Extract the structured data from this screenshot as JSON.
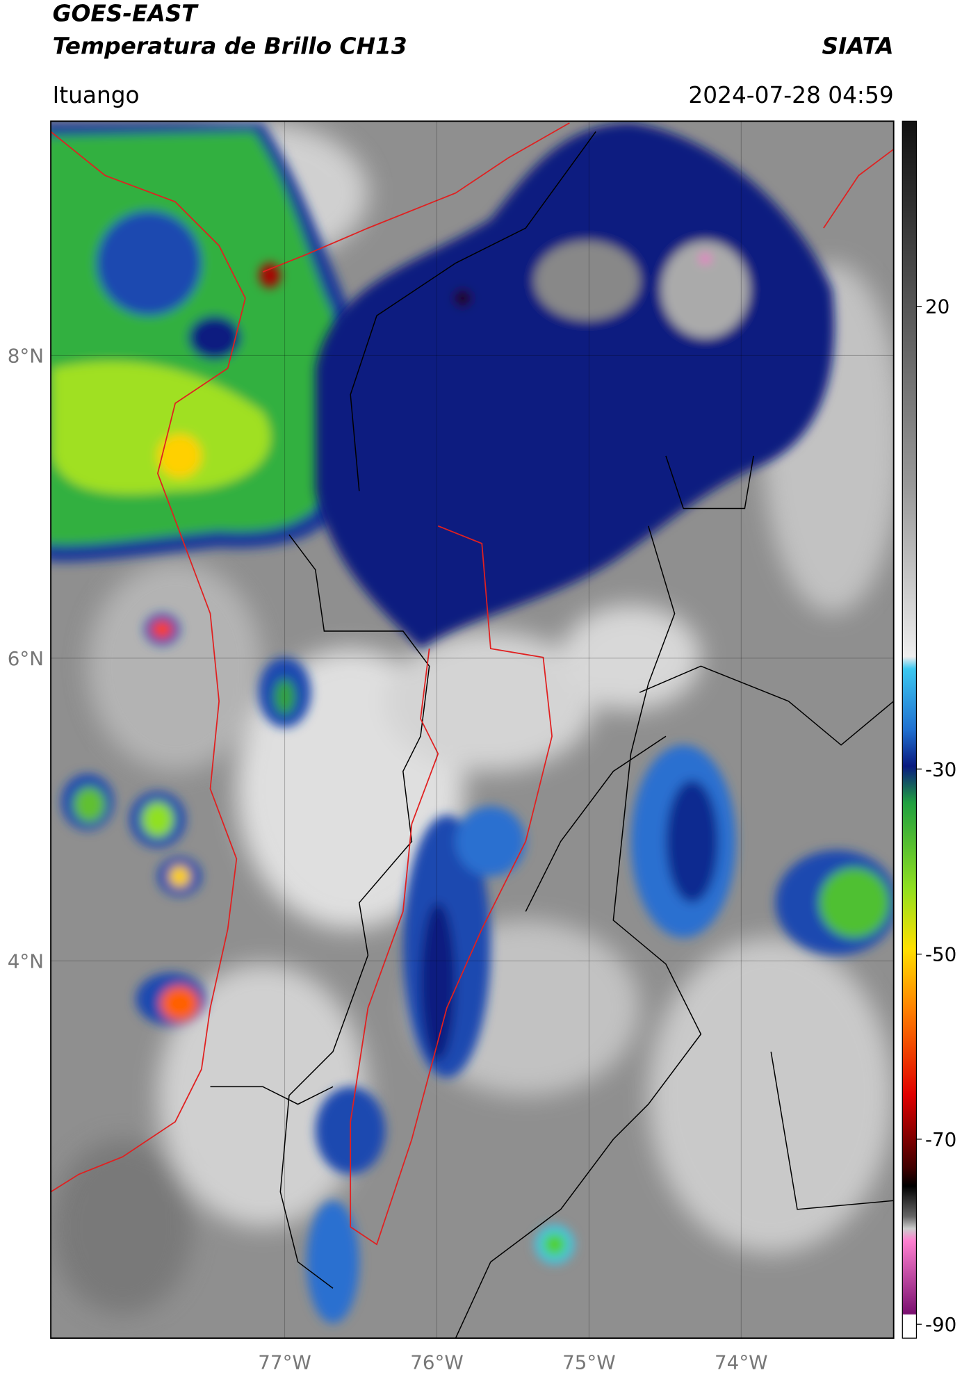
{
  "header": {
    "product": "GOES-EAST",
    "title": "Temperatura de Brillo CH13",
    "org": "SIATA",
    "location": "Ituango",
    "datetime": "2024-07-28 04:59"
  },
  "map": {
    "latlim": [
      1.507,
      9.548
    ],
    "lonlim": [
      -78.537,
      -72.998
    ],
    "lat_ticks": [
      {
        "value": 8,
        "label": "8°N"
      },
      {
        "value": 6,
        "label": "6°N"
      },
      {
        "value": 4,
        "label": "4°N"
      }
    ],
    "lon_ticks": [
      {
        "value": -77,
        "label": "77°W"
      },
      {
        "value": -76,
        "label": "76°W"
      },
      {
        "value": -75,
        "label": "75°W"
      },
      {
        "value": -74,
        "label": "74°W"
      }
    ],
    "grid": true
  },
  "colorbar": {
    "lim": [
      -91.5,
      40
    ],
    "ticks": [
      20,
      -30,
      -50,
      -70,
      -90
    ]
  }
}
